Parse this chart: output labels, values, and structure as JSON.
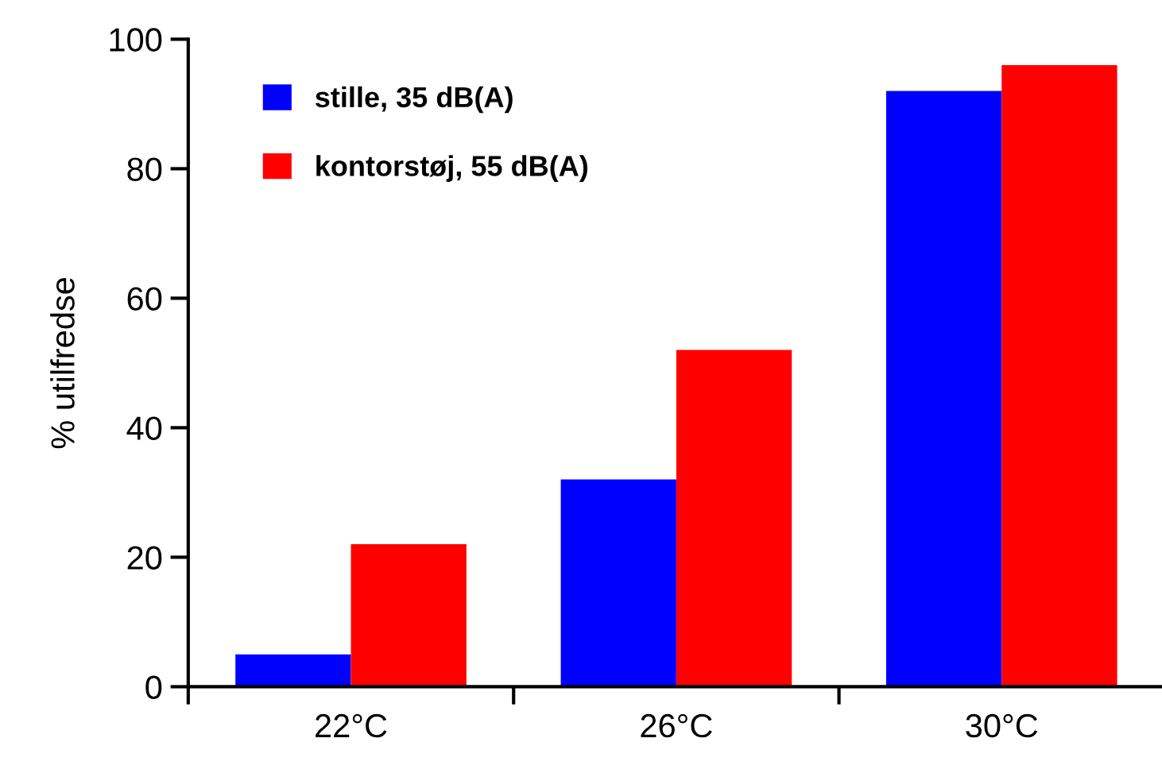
{
  "chart_data": {
    "type": "bar",
    "ylabel": "% utilfredse",
    "categories": [
      "22°C",
      "26°C",
      "30°C"
    ],
    "series": [
      {
        "name": "stille, 35 dB(A)",
        "color": "#0000ff",
        "values": [
          5,
          32,
          92
        ]
      },
      {
        "name": "kontorstøj, 55 dB(A)",
        "color": "#ff0000",
        "values": [
          22,
          52,
          96
        ]
      }
    ],
    "ylim": [
      0,
      100
    ],
    "yticks": [
      0,
      20,
      40,
      60,
      80,
      100
    ],
    "grid": false,
    "legend": "top left"
  }
}
